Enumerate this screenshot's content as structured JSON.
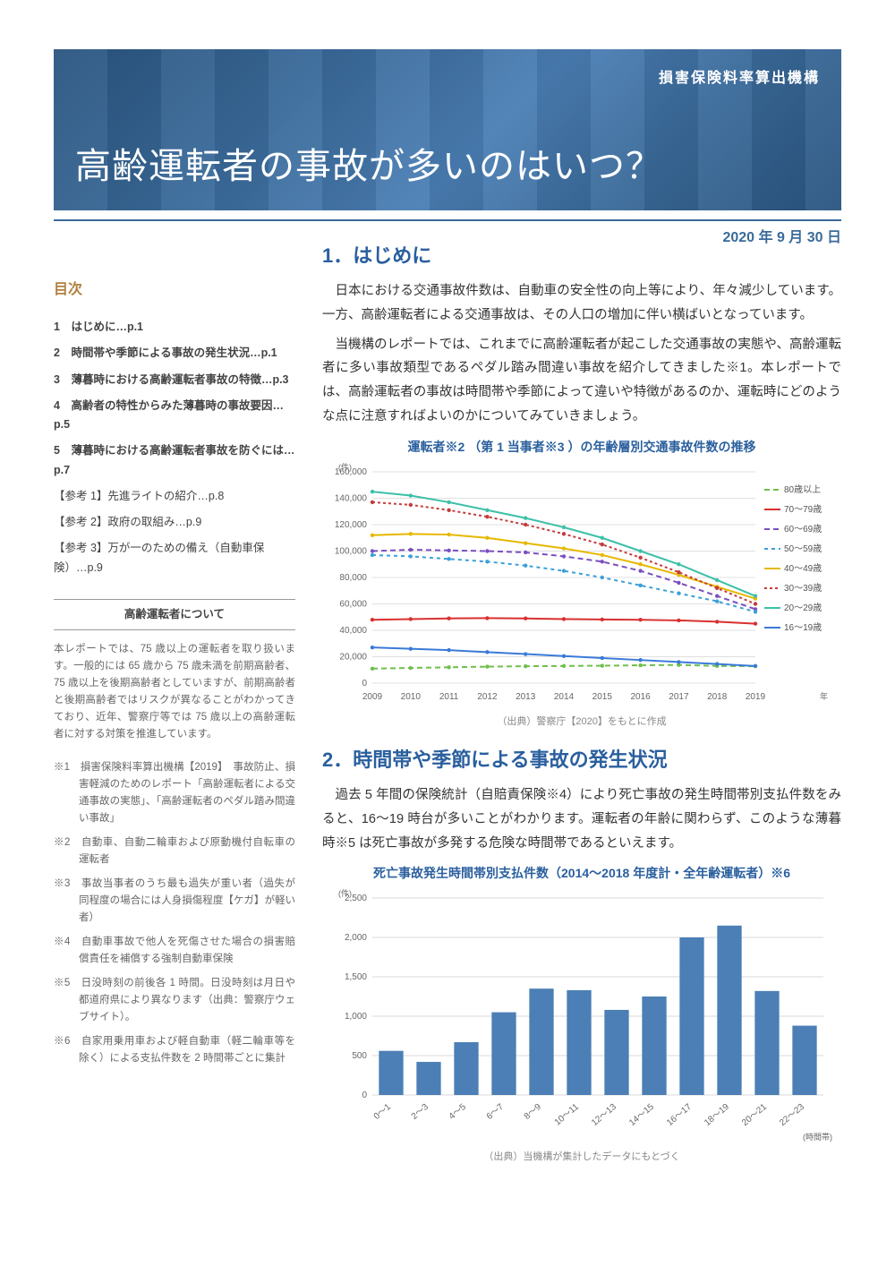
{
  "header": {
    "org": "損害保険料率算出機構",
    "title": "高齢運転者の事故が多いのはいつ？",
    "date": "2020 年 9 月 30 日"
  },
  "sidebar": {
    "toc_title": "目次",
    "toc": [
      "1　はじめに…p.1",
      "2　時間帯や季節による事故の発生状況…p.1",
      "3　薄暮時における高齢運転者事故の特徴…p.3",
      "4　高齢者の特性からみた薄暮時の事故要因…p.5",
      "5　薄暮時における高齢運転者事故を防ぐには…p.7"
    ],
    "toc_ref": [
      "【参考 1】先進ライトの紹介…p.8",
      "【参考 2】政府の取組み…p.9",
      "【参考 3】万が一のための備え（自動車保険）…p.9"
    ],
    "box_title": "高齢運転者について",
    "box_text": "本レポートでは、75 歳以上の運転者を取り扱います。一般的には 65 歳から 75 歳未満を前期高齢者、75 歳以上を後期高齢者としていますが、前期高齢者と後期高齢者ではリスクが異なることがわかってきており、近年、警察庁等では 75 歳以上の高齢運転者に対する対策を推進しています。",
    "footnotes": [
      "※1　損害保険料率算出機構【2019】　事故防止、損害軽減のためのレポート「高齢運転者による交通事故の実態」、「高齢運転者のペダル踏み間違い事故」",
      "※2　自動車、自動二輪車および原動機付自転車の運転者",
      "※3　事故当事者のうち最も過失が重い者（過失が同程度の場合には人身損傷程度【ケガ】が軽い者）",
      "※4　自動車事故で他人を死傷させた場合の損害賠償責任を補償する強制自動車保険",
      "※5　日没時刻の前後各 1 時間。日没時刻は月日や都道府県により異なります（出典：警察庁ウェブサイト）。",
      "※6　自家用乗用車および軽自動車（軽二輪車等を除く）による支払件数を 2 時間帯ごとに集計"
    ]
  },
  "section1": {
    "heading": "1．はじめに",
    "p1": "日本における交通事故件数は、自動車の安全性の向上等により、年々減少しています。一方、高齢運転者による交通事故は、その人口の増加に伴い横ばいとなっています。",
    "p2": "当機構のレポートでは、これまでに高齢運転者が起こした交通事故の実態や、高齢運転者に多い事故類型であるペダル踏み間違い事故を紹介してきました※1。本レポートでは、高齢運転者の事故は時間帯や季節によって違いや特徴があるのか、運転時にどのような点に注意すればよいのかについてみていきましょう。"
  },
  "chart1": {
    "type": "line",
    "title": "運転者※2 （第 1 当事者※3 ）の年齢層別交通事故件数の推移",
    "caption": "（出典）警察庁【2020】をもとに作成",
    "y_unit": "(件)",
    "x_unit": "年",
    "years": [
      2009,
      2010,
      2011,
      2012,
      2013,
      2014,
      2015,
      2016,
      2017,
      2018,
      2019
    ],
    "ylim": [
      0,
      160000
    ],
    "ytick_step": 20000,
    "series": [
      {
        "name": "80歳以上",
        "color": "#6fbf4b",
        "dash": "6,4",
        "values": [
          11000,
          11500,
          12000,
          12500,
          12800,
          13000,
          13200,
          13500,
          13800,
          13000,
          12800
        ]
      },
      {
        "name": "70～79歳",
        "color": "#d93030",
        "dash": "",
        "values": [
          48000,
          48500,
          49000,
          49200,
          49000,
          48500,
          48200,
          48000,
          47500,
          46500,
          45000
        ]
      },
      {
        "name": "60～69歳",
        "color": "#7a4fc0",
        "dash": "6,4",
        "values": [
          100000,
          101000,
          100500,
          100000,
          99000,
          96000,
          92000,
          85000,
          76000,
          66000,
          56000
        ]
      },
      {
        "name": "50～59歳",
        "color": "#3aa0d8",
        "dash": "4,4",
        "values": [
          97000,
          96000,
          94000,
          92000,
          89000,
          85000,
          80000,
          74000,
          68000,
          62000,
          54000
        ]
      },
      {
        "name": "40～49歳",
        "color": "#e6b800",
        "dash": "",
        "values": [
          112000,
          113000,
          112500,
          110000,
          106000,
          102000,
          97000,
          90000,
          82000,
          73000,
          64000
        ]
      },
      {
        "name": "30～39歳",
        "color": "#c43c3c",
        "dash": "3,3",
        "values": [
          137000,
          135000,
          131000,
          126000,
          120000,
          113000,
          105000,
          95000,
          84000,
          72000,
          60000
        ]
      },
      {
        "name": "20～29歳",
        "color": "#3cc0a8",
        "dash": "",
        "values": [
          145000,
          142000,
          137000,
          131000,
          125000,
          118000,
          110000,
          100000,
          90000,
          78000,
          66000
        ]
      },
      {
        "name": "16～19歳",
        "color": "#3a7ad8",
        "dash": "",
        "values": [
          27000,
          26000,
          25000,
          23500,
          22000,
          20500,
          19000,
          17500,
          16000,
          14500,
          13000
        ]
      }
    ],
    "legend_fontsize": 10,
    "axis_fontsize": 10,
    "grid_color": "#e0e0e0",
    "background": "#ffffff"
  },
  "section2": {
    "heading": "2．時間帯や季節による事故の発生状況",
    "p1": "過去 5 年間の保険統計（自賠責保険※4）により死亡事故の発生時間帯別支払件数をみると、16～19 時台が多いことがわかります。運転者の年齢に関わらず、このような薄暮時※5 は死亡事故が多発する危険な時間帯であるといえます。"
  },
  "chart2": {
    "type": "bar",
    "title": "死亡事故発生時間帯別支払件数（2014～2018 年度計・全年齢運転者）※6",
    "caption": "（出典）当機構が集計したデータにもとづく",
    "y_unit": "(件)",
    "x_unit": "(時間帯)",
    "categories": [
      "0～1",
      "2～3",
      "4～5",
      "6～7",
      "8～9",
      "10～11",
      "12～13",
      "14～15",
      "16～17",
      "18～19",
      "20～21",
      "22～23"
    ],
    "values": [
      560,
      420,
      670,
      1050,
      1350,
      1330,
      1080,
      1250,
      2000,
      2150,
      1320,
      880
    ],
    "ylim": [
      0,
      2500
    ],
    "ytick_step": 500,
    "bar_color": "#4b7fb5",
    "grid_color": "#d8d8d8",
    "background": "#ffffff",
    "axis_fontsize": 10
  }
}
